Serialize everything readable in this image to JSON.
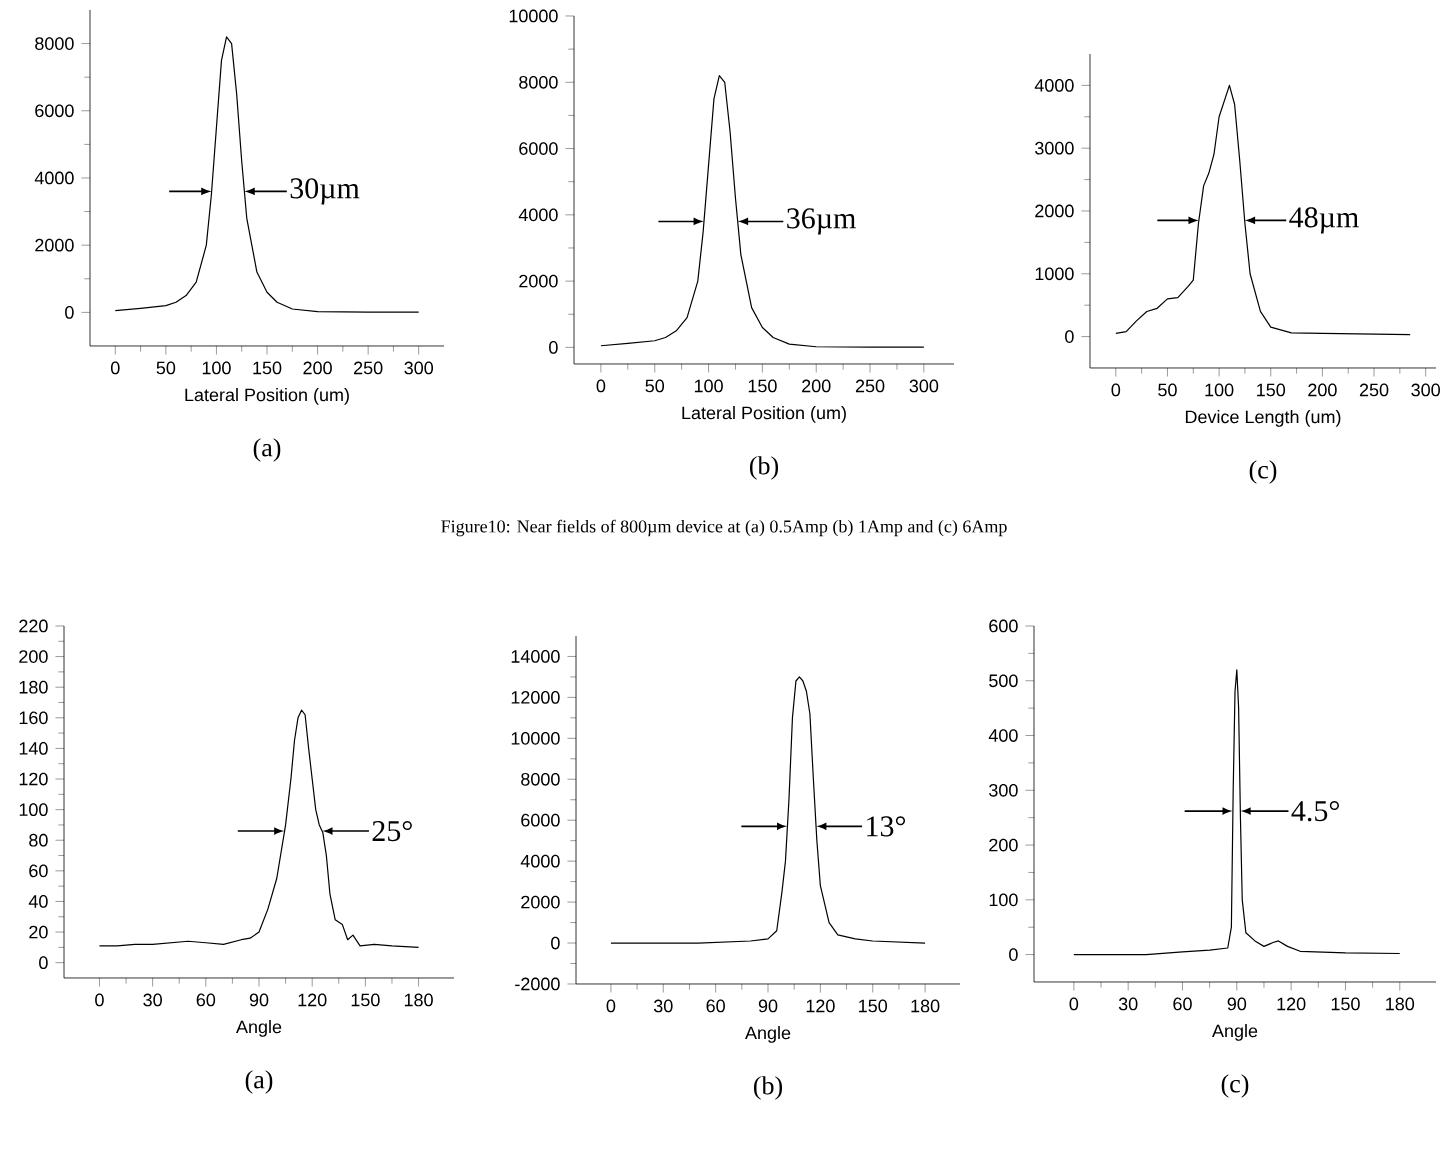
{
  "chart_data": [
    {
      "type": "line",
      "title": "(a)",
      "xlabel": "Lateral Position (um)",
      "xlim": [
        -25,
        325
      ],
      "xticks": [
        0,
        50,
        100,
        150,
        200,
        250,
        300
      ],
      "ylim": [
        -1000,
        9000
      ],
      "yticks": [
        0,
        2000,
        4000,
        6000,
        8000
      ],
      "annotations": [
        {
          "text": "30µm",
          "x": 127.6,
          "y": 3600
        }
      ],
      "series": [
        {
          "color": "#000000",
          "x": [
            0,
            25,
            50,
            60,
            70,
            80,
            90,
            95,
            100,
            105,
            110,
            115,
            120,
            125,
            130,
            140,
            150,
            160,
            175,
            200,
            250,
            300
          ],
          "values": [
            50,
            120,
            200,
            300,
            500,
            900,
            2000,
            3500,
            5500,
            7500,
            8200,
            8000,
            6500,
            4500,
            2800,
            1200,
            600,
            300,
            100,
            20,
            10,
            10
          ]
        }
      ]
    },
    {
      "type": "line",
      "title": "(b)",
      "xlabel": "Lateral Position (um)",
      "xlim": [
        -25,
        328
      ],
      "xticks": [
        0,
        50,
        100,
        150,
        200,
        250,
        300
      ],
      "ylim": [
        -500,
        10000
      ],
      "yticks": [
        0,
        2000,
        4000,
        6000,
        8000,
        10000
      ],
      "annotations": [
        {
          "text": "36µm",
          "x": 127.1,
          "y": 3800
        },
        "Figure10:    Near fields of 800µm device at (a) 0.5Amp (b) 1Amp and (c) 6Amp"
      ],
      "series": [
        {
          "color": "#000000",
          "x": [
            0,
            25,
            50,
            60,
            70,
            80,
            90,
            95,
            100,
            105,
            110,
            115,
            120,
            125,
            130,
            140,
            150,
            160,
            175,
            200,
            250,
            300
          ],
          "values": [
            50,
            120,
            200,
            300,
            500,
            900,
            2000,
            3500,
            5500,
            7500,
            8200,
            8000,
            6500,
            4500,
            2800,
            1200,
            600,
            300,
            100,
            20,
            10,
            10
          ]
        }
      ]
    },
    {
      "type": "line",
      "title": "(c)",
      "xlabel": "Device Length (um)",
      "xlim": [
        -25,
        310
      ],
      "xticks": [
        0,
        50,
        100,
        150,
        200,
        250,
        300
      ],
      "ylim": [
        -500,
        4500
      ],
      "yticks": [
        0,
        1000,
        2000,
        3000,
        4000
      ],
      "annotations": [
        {
          "text": "48µm",
          "x": 124.8,
          "y": 1850
        }
      ],
      "series": [
        {
          "color": "#000000",
          "x": [
            0,
            10,
            20,
            30,
            40,
            50,
            60,
            70,
            75,
            80,
            85,
            90,
            95,
            100,
            110,
            115,
            120,
            125,
            130,
            140,
            150,
            170,
            200,
            285
          ],
          "values": [
            50,
            80,
            250,
            400,
            450,
            600,
            620,
            800,
            900,
            1800,
            2400,
            2600,
            2900,
            3500,
            4000,
            3700,
            2800,
            1800,
            1000,
            400,
            150,
            60,
            50,
            30
          ]
        }
      ]
    },
    {
      "type": "line",
      "title": "(a)",
      "xlabel": "Angle",
      "xlim": [
        -20,
        200
      ],
      "xticks": [
        0,
        30,
        60,
        90,
        120,
        150,
        180
      ],
      "ylim": [
        -10,
        220
      ],
      "yticks": [
        0,
        20,
        40,
        60,
        80,
        100,
        120,
        140,
        160,
        180,
        200,
        220
      ],
      "annotations": [
        {
          "text": "25°",
          "x": 125.6,
          "y": 86
        }
      ],
      "series": [
        {
          "color": "#000000",
          "x": [
            0,
            10,
            20,
            30,
            40,
            50,
            60,
            70,
            80,
            85,
            90,
            95,
            100,
            105,
            108,
            110,
            112,
            114,
            116,
            118,
            120,
            122,
            124,
            126,
            128,
            130,
            133,
            137,
            140,
            143,
            147,
            155,
            165,
            180
          ],
          "values": [
            11,
            11,
            12,
            12,
            13,
            14,
            13,
            12,
            15,
            16,
            20,
            35,
            55,
            90,
            120,
            145,
            160,
            165,
            162,
            140,
            120,
            100,
            90,
            85,
            70,
            45,
            28,
            25,
            15,
            18,
            11,
            12,
            11,
            10
          ]
        }
      ]
    },
    {
      "type": "line",
      "title": "(b)",
      "xlabel": "Angle",
      "xlim": [
        -20,
        200
      ],
      "xticks": [
        0,
        30,
        60,
        90,
        120,
        150,
        180
      ],
      "ylim": [
        -2000,
        15000
      ],
      "yticks": [
        -2000,
        0,
        2000,
        4000,
        6000,
        8000,
        10000,
        12000,
        14000
      ],
      "annotations": [
        {
          "text": "13°",
          "x": 117.5,
          "y": 5700
        }
      ],
      "series": [
        {
          "color": "#000000",
          "x": [
            0,
            50,
            80,
            90,
            95,
            98,
            100,
            102,
            104,
            106,
            108,
            110,
            112,
            114,
            116,
            118,
            120,
            125,
            130,
            140,
            150,
            180
          ],
          "values": [
            0,
            0,
            100,
            200,
            600,
            2500,
            4000,
            7000,
            11000,
            12800,
            13000,
            12800,
            12300,
            11200,
            8000,
            5000,
            2800,
            1000,
            400,
            200,
            100,
            0
          ]
        }
      ]
    },
    {
      "type": "line",
      "title": "(c)",
      "xlabel": "Angle",
      "xlim": [
        -22,
        200
      ],
      "xticks": [
        0,
        30,
        60,
        90,
        120,
        150,
        180
      ],
      "ylim": [
        -50,
        600
      ],
      "yticks": [
        0,
        100,
        200,
        300,
        400,
        500,
        600
      ],
      "annotations": [
        {
          "text": "4.5°",
          "x": 91.9,
          "y": 262
        }
      ],
      "series": [
        {
          "color": "#000000",
          "x": [
            0,
            40,
            60,
            75,
            85,
            87,
            88,
            89,
            90,
            91,
            92,
            93,
            95,
            100,
            105,
            110,
            113,
            118,
            125,
            150,
            180
          ],
          "values": [
            0,
            0,
            5,
            8,
            12,
            50,
            300,
            480,
            520,
            450,
            250,
            100,
            40,
            25,
            15,
            22,
            25,
            15,
            6,
            3,
            2
          ]
        }
      ]
    }
  ]
}
